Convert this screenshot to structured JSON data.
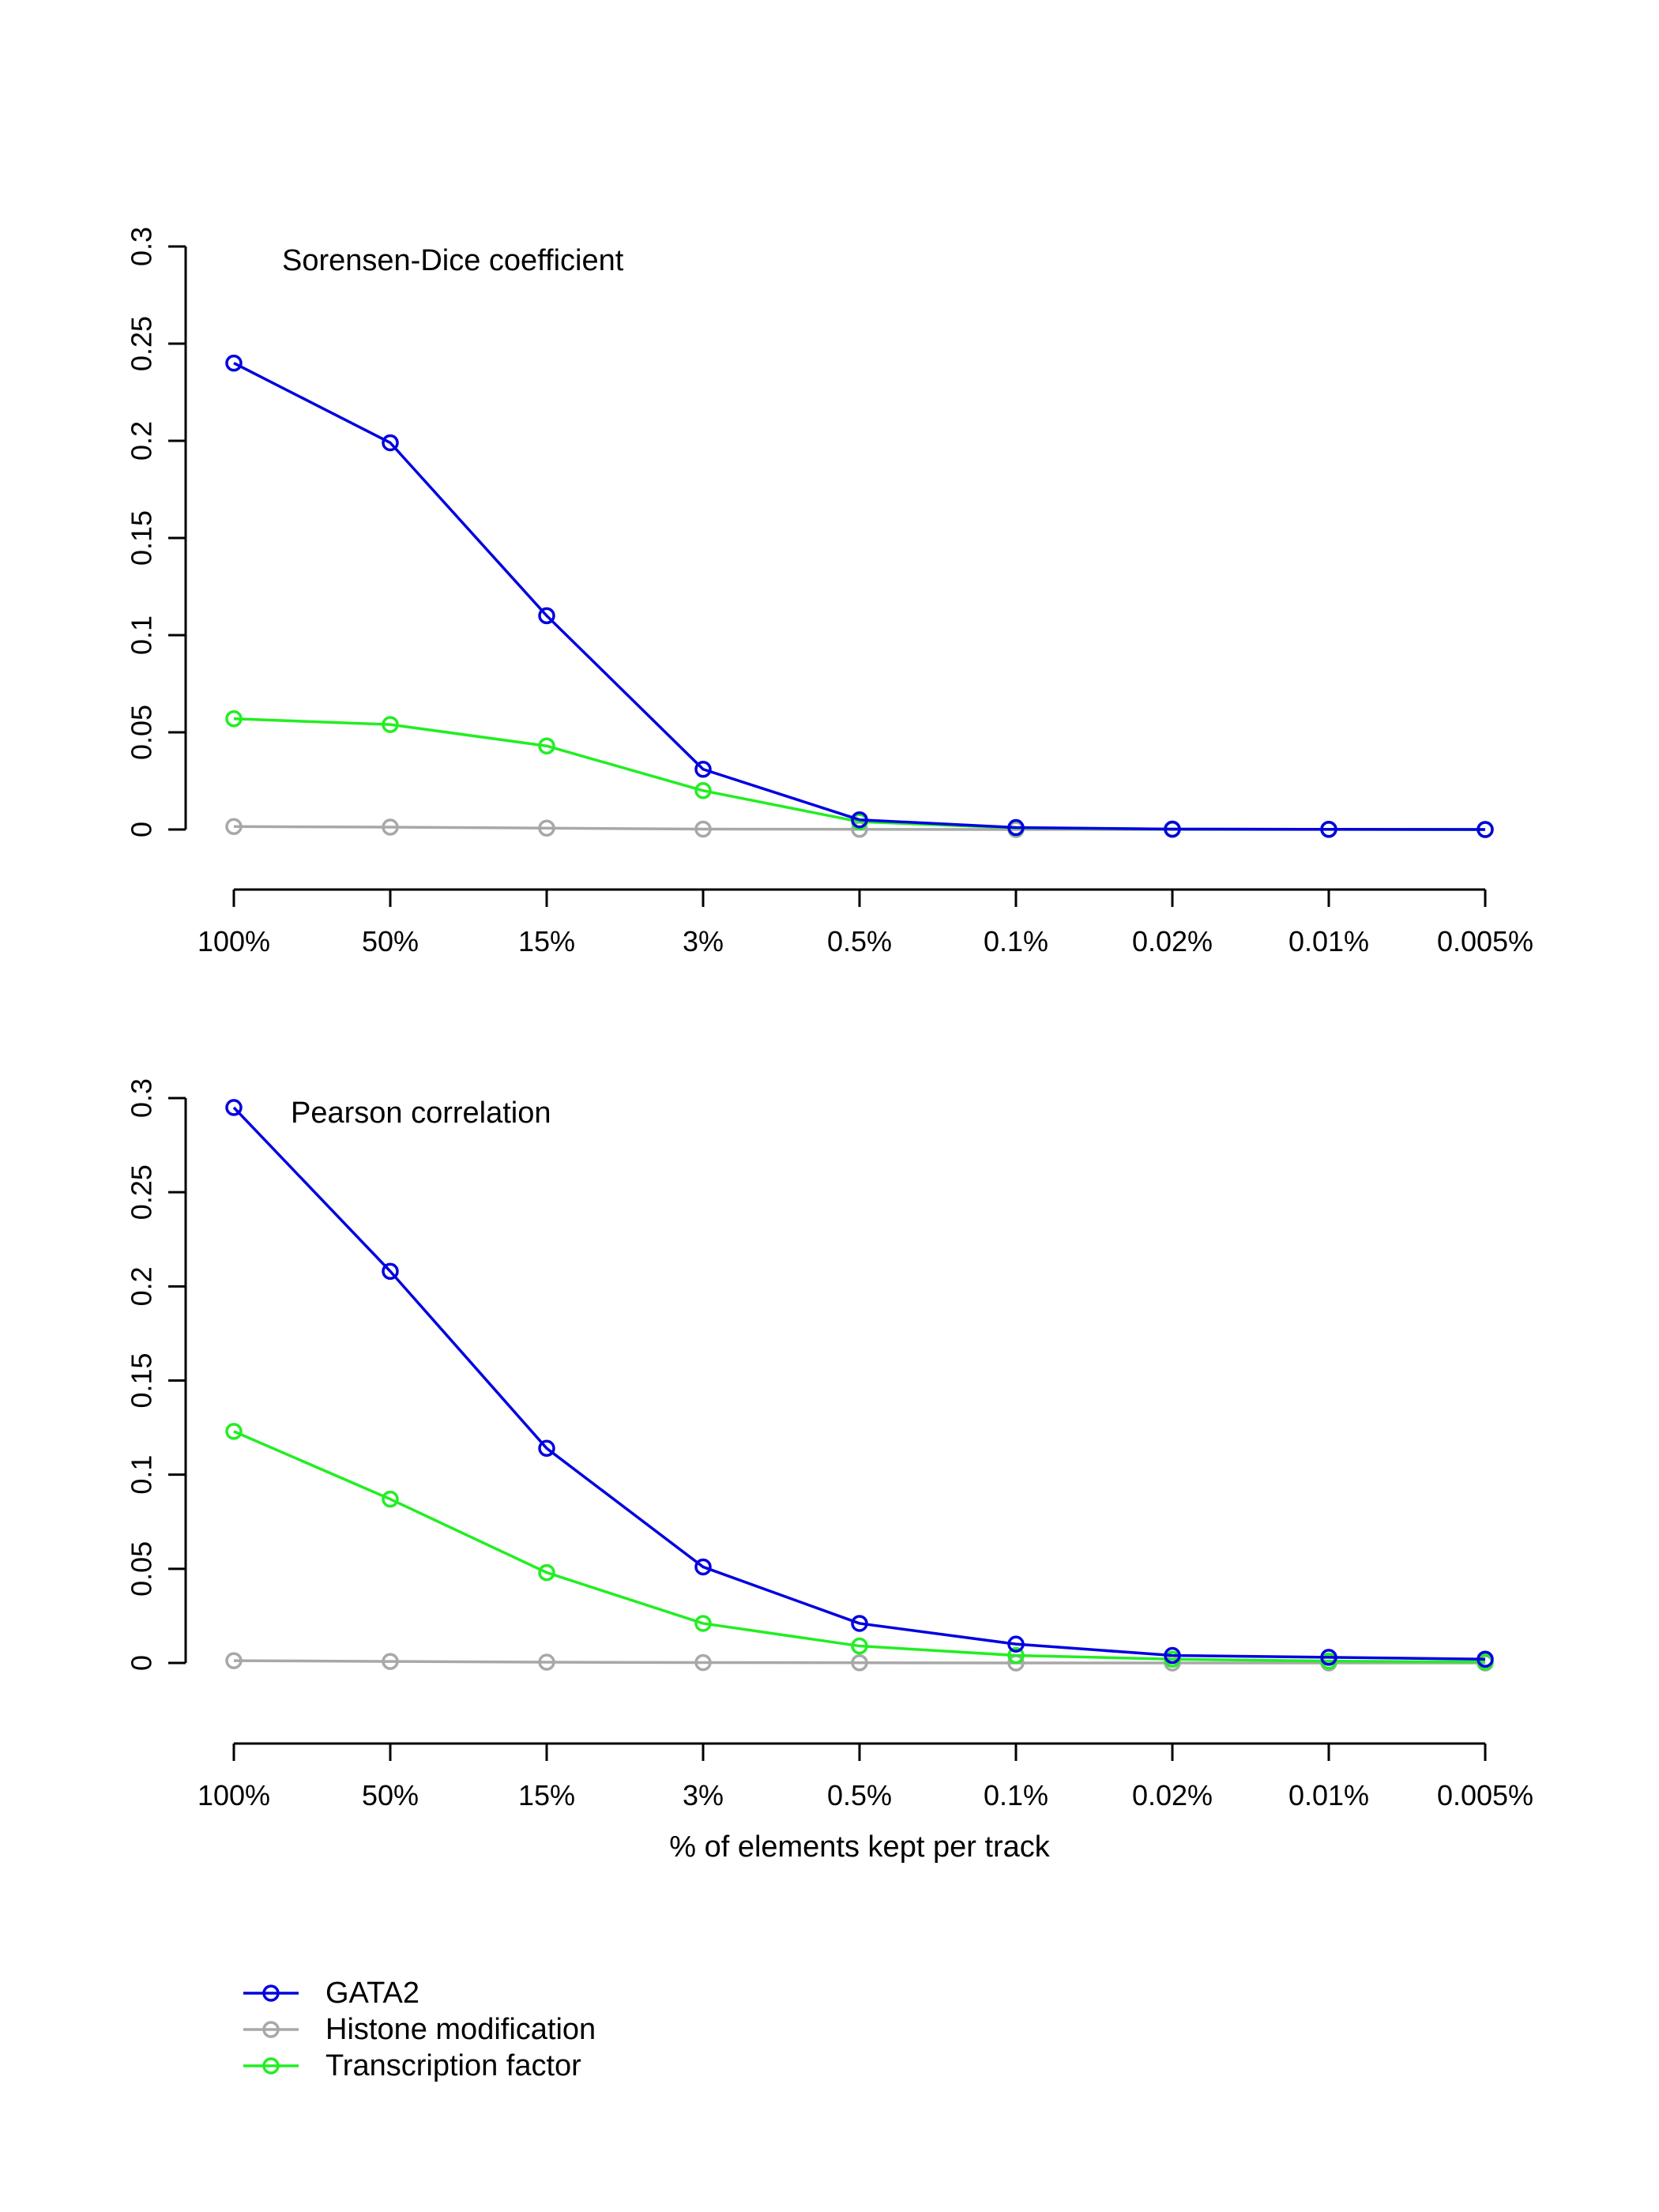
{
  "colors": {
    "GATA2": "#0000e0",
    "Histone modification": "#a8a8a8",
    "Transcription factor": "#22ee22"
  },
  "chart_data": [
    {
      "type": "line",
      "title": "Sorensen-Dice coefficient",
      "xlabel": "",
      "ylabel": "",
      "categories": [
        "100%",
        "50%",
        "15%",
        "3%",
        "0.5%",
        "0.1%",
        "0.02%",
        "0.01%",
        "0.005%"
      ],
      "y_ticks": [
        "0",
        "0.05",
        "0.1",
        "0.15",
        "0.2",
        "0.25",
        "0.3"
      ],
      "ylim": [
        0,
        0.3
      ],
      "grid": false,
      "series": [
        {
          "name": "Histone modification",
          "values": [
            0.0015,
            0.0012,
            0.0007,
            0.0002,
            0.0001,
            0.0,
            0.0,
            0.0,
            0.0
          ]
        },
        {
          "name": "Transcription factor",
          "values": [
            0.057,
            0.054,
            0.043,
            0.02,
            0.004,
            0.0008,
            0.0002,
            0.0001,
            0.0
          ]
        },
        {
          "name": "GATA2",
          "values": [
            0.24,
            0.199,
            0.11,
            0.031,
            0.005,
            0.001,
            0.0002,
            0.0001,
            0.0
          ]
        }
      ]
    },
    {
      "type": "line",
      "title": "Pearson correlation",
      "xlabel": "% of elements kept per track",
      "ylabel": "",
      "categories": [
        "100%",
        "50%",
        "15%",
        "3%",
        "0.5%",
        "0.1%",
        "0.02%",
        "0.01%",
        "0.005%"
      ],
      "y_ticks": [
        "0",
        "0.05",
        "0.1",
        "0.15",
        "0.2",
        "0.25",
        "0.3"
      ],
      "ylim": [
        0,
        0.3
      ],
      "grid": false,
      "series": [
        {
          "name": "Histone modification",
          "values": [
            0.0012,
            0.0008,
            0.0004,
            0.0002,
            0.0001,
            0.0,
            0.0,
            0.0,
            0.0
          ]
        },
        {
          "name": "Transcription factor",
          "values": [
            0.123,
            0.087,
            0.048,
            0.021,
            0.009,
            0.004,
            0.002,
            0.001,
            0.0005
          ]
        },
        {
          "name": "GATA2",
          "values": [
            0.295,
            0.208,
            0.114,
            0.051,
            0.021,
            0.01,
            0.004,
            0.003,
            0.002
          ]
        }
      ]
    }
  ],
  "legend": {
    "position": "bottom-left",
    "entries": [
      "GATA2",
      "Histone modification",
      "Transcription factor"
    ]
  }
}
